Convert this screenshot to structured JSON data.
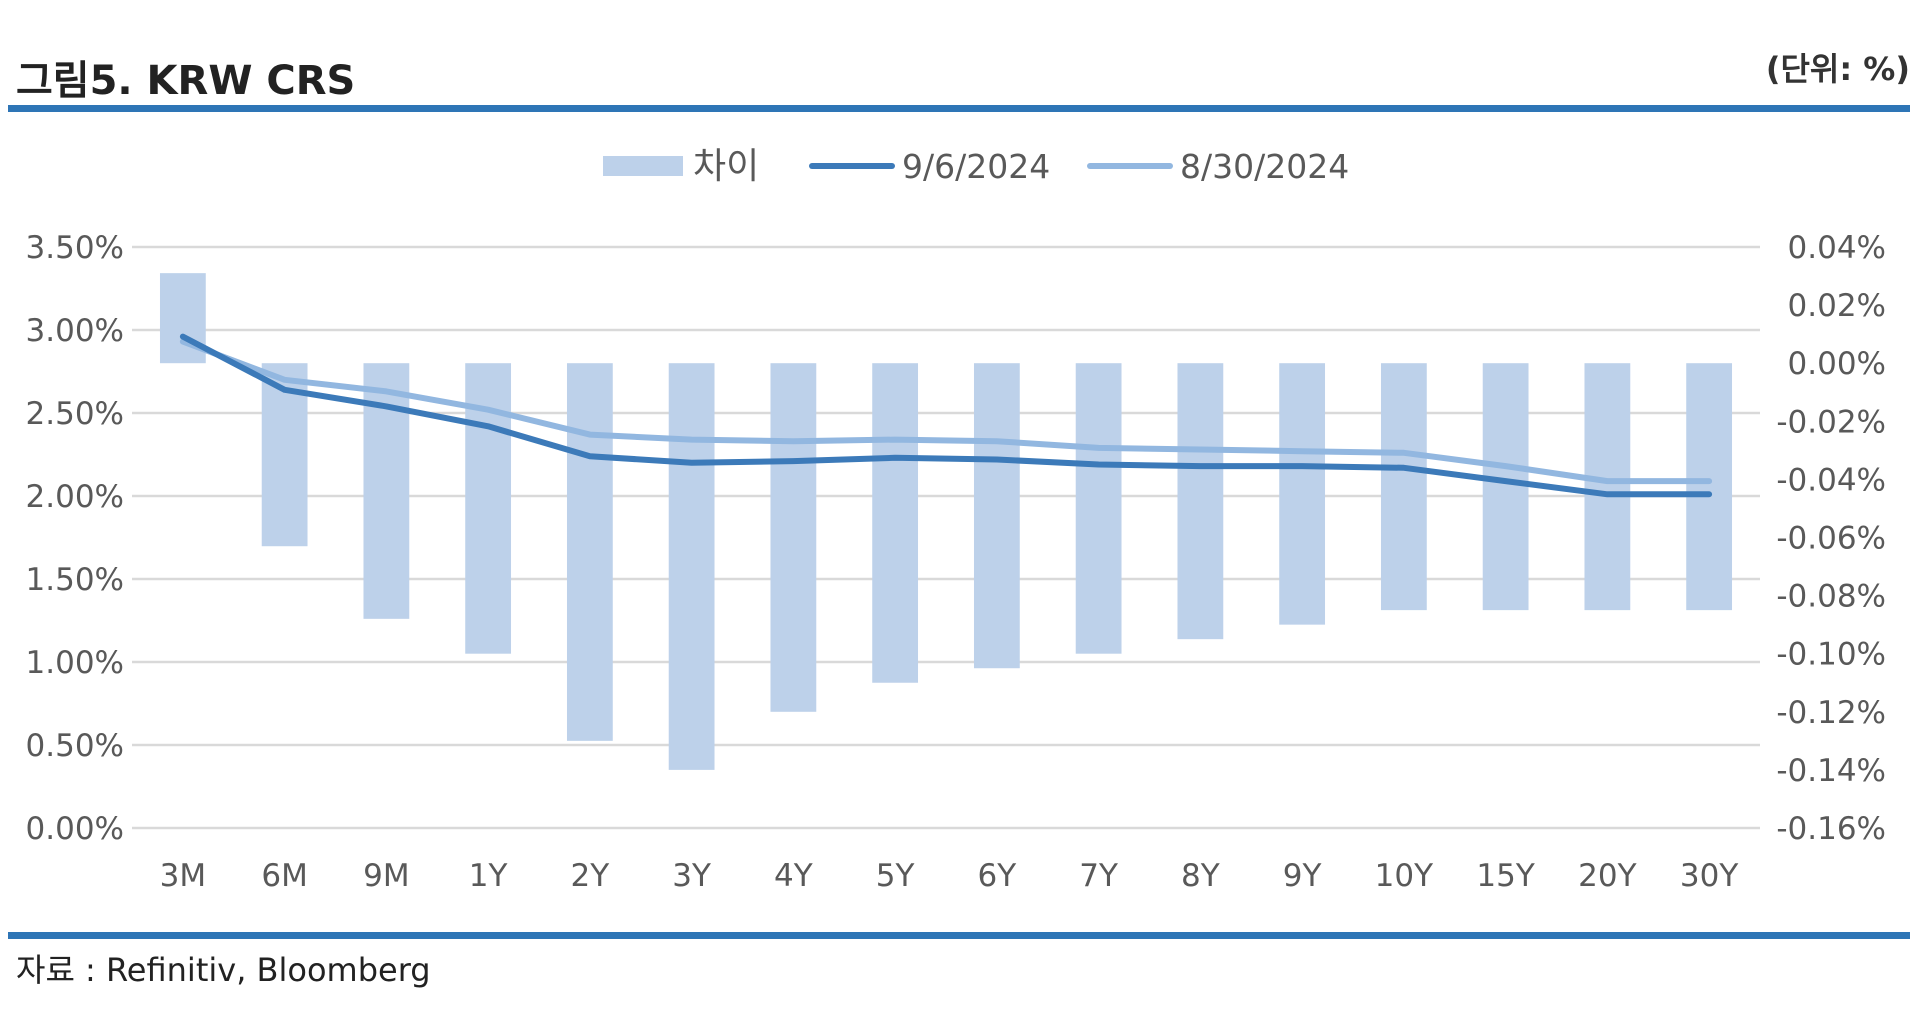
{
  "header": {
    "title": "그림5. KRW CRS",
    "unit": "(단위: %)"
  },
  "footer": {
    "source": "자료 : Refinitiv, Bloomberg"
  },
  "colors": {
    "rule": "#2e75b6",
    "bar": "#bdd1ea",
    "line_current": "#3c7ab9",
    "line_previous": "#92b7e0",
    "grid": "#d9d9d9",
    "tick_text": "#595959"
  },
  "chart_data": {
    "type": "bar",
    "categories": [
      "3M",
      "6M",
      "9M",
      "1Y",
      "2Y",
      "3Y",
      "4Y",
      "5Y",
      "6Y",
      "7Y",
      "8Y",
      "9Y",
      "10Y",
      "15Y",
      "20Y",
      "30Y"
    ],
    "series": [
      {
        "name": "차이",
        "type": "bar",
        "axis": "right",
        "values": [
          0.031,
          -0.063,
          -0.088,
          -0.1,
          -0.13,
          -0.14,
          -0.12,
          -0.11,
          -0.105,
          -0.1,
          -0.095,
          -0.09,
          -0.085,
          -0.085,
          -0.085,
          -0.085
        ]
      },
      {
        "name": "9/6/2024",
        "type": "line",
        "axis": "left",
        "values": [
          2.96,
          2.64,
          2.54,
          2.42,
          2.24,
          2.2,
          2.21,
          2.23,
          2.22,
          2.19,
          2.18,
          2.18,
          2.17,
          2.09,
          2.01,
          2.01
        ]
      },
      {
        "name": "8/30/2024",
        "type": "line",
        "axis": "left",
        "values": [
          2.93,
          2.7,
          2.63,
          2.52,
          2.37,
          2.34,
          2.33,
          2.34,
          2.33,
          2.29,
          2.28,
          2.27,
          2.26,
          2.18,
          2.09,
          2.09
        ]
      }
    ],
    "y_left": {
      "ylim": [
        0,
        3.5
      ],
      "ticks": [
        0,
        0.5,
        1.0,
        1.5,
        2.0,
        2.5,
        3.0,
        3.5
      ],
      "tick_labels": [
        "0.00%",
        "0.50%",
        "1.00%",
        "1.50%",
        "2.00%",
        "2.50%",
        "3.00%",
        "3.50%"
      ]
    },
    "y_right": {
      "ylim": [
        -0.16,
        0.04
      ],
      "ticks": [
        -0.16,
        -0.14,
        -0.12,
        -0.1,
        -0.08,
        -0.06,
        -0.04,
        -0.02,
        0.0,
        0.02,
        0.04
      ],
      "tick_labels": [
        "-0.16%",
        "-0.14%",
        "-0.12%",
        "-0.10%",
        "-0.08%",
        "-0.06%",
        "-0.04%",
        "-0.02%",
        "0.00%",
        "0.02%",
        "0.04%"
      ]
    },
    "grid": true,
    "legend": "top-center"
  }
}
